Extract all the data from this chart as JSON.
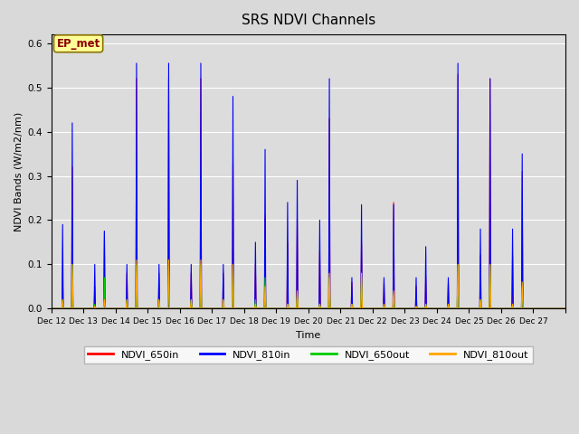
{
  "title": "SRS NDVI Channels",
  "ylabel": "NDVI Bands (W/m2/nm)",
  "xlabel": "Time",
  "annotation": "EP_met",
  "ylim": [
    0.0,
    0.62
  ],
  "background_color": "#dcdcdc",
  "grid_color": "#ffffff",
  "colors": {
    "NDVI_650in": "#ff0000",
    "NDVI_810in": "#0000ff",
    "NDVI_650out": "#00cc00",
    "NDVI_810out": "#ffa500"
  },
  "xlabels": [
    "Dec 12",
    "Dec 13",
    "Dec 14",
    "Dec 15",
    "Dec 16",
    "Dec 17",
    "Dec 18",
    "Dec 19",
    "Dec 20",
    "Dec 21",
    "Dec 22",
    "Dec 23",
    "Dec 24",
    "Dec 25",
    "Dec 26",
    "Dec 27"
  ],
  "n_days": 16,
  "spikes_810in": [
    [
      0.19,
      0.42
    ],
    [
      0.1,
      0.175
    ],
    [
      0.1,
      0.555
    ],
    [
      0.1,
      0.555
    ],
    [
      0.1,
      0.555
    ],
    [
      0.1,
      0.48
    ],
    [
      0.15,
      0.36
    ],
    [
      0.24,
      0.29
    ],
    [
      0.2,
      0.52
    ],
    [
      0.07,
      0.235
    ],
    [
      0.07,
      0.235
    ],
    [
      0.07,
      0.14
    ],
    [
      0.07,
      0.555
    ],
    [
      0.18,
      0.52
    ],
    [
      0.18,
      0.35
    ],
    []
  ],
  "spikes_650in": [
    [
      0.08,
      0.32
    ],
    [
      0.05,
      0.175
    ],
    [
      0.08,
      0.52
    ],
    [
      0.08,
      0.52
    ],
    [
      0.08,
      0.52
    ],
    [
      0.08,
      0.33
    ],
    [
      0.1,
      0.21
    ],
    [
      0.15,
      0.2
    ],
    [
      0.13,
      0.43
    ],
    [
      0.06,
      0.15
    ],
    [
      0.06,
      0.24
    ],
    [
      0.05,
      0.07
    ],
    [
      0.06,
      0.53
    ],
    [
      0.12,
      0.52
    ],
    [
      0.12,
      0.31
    ],
    []
  ],
  "spikes_650out": [
    [
      0.02,
      0.1
    ],
    [
      0.01,
      0.07
    ],
    [
      0.02,
      0.1
    ],
    [
      0.02,
      0.1
    ],
    [
      0.02,
      0.1
    ],
    [
      0.02,
      0.1
    ],
    [
      0.02,
      0.07
    ],
    [
      0.01,
      0.03
    ],
    [
      0.01,
      0.07
    ],
    [
      0.01,
      0.07
    ],
    [
      0.01,
      0.03
    ],
    [
      0.005,
      0.01
    ],
    [
      0.01,
      0.1
    ],
    [
      0.02,
      0.1
    ],
    [
      0.01,
      0.05
    ],
    []
  ],
  "spikes_810out": [
    [
      0.02,
      0.1
    ],
    [
      0.005,
      0.02
    ],
    [
      0.02,
      0.11
    ],
    [
      0.02,
      0.11
    ],
    [
      0.02,
      0.11
    ],
    [
      0.02,
      0.1
    ],
    [
      0.01,
      0.05
    ],
    [
      0.01,
      0.04
    ],
    [
      0.01,
      0.08
    ],
    [
      0.01,
      0.08
    ],
    [
      0.01,
      0.04
    ],
    [
      0.005,
      0.01
    ],
    [
      0.01,
      0.1
    ],
    [
      0.02,
      0.1
    ],
    [
      0.01,
      0.06
    ],
    []
  ]
}
